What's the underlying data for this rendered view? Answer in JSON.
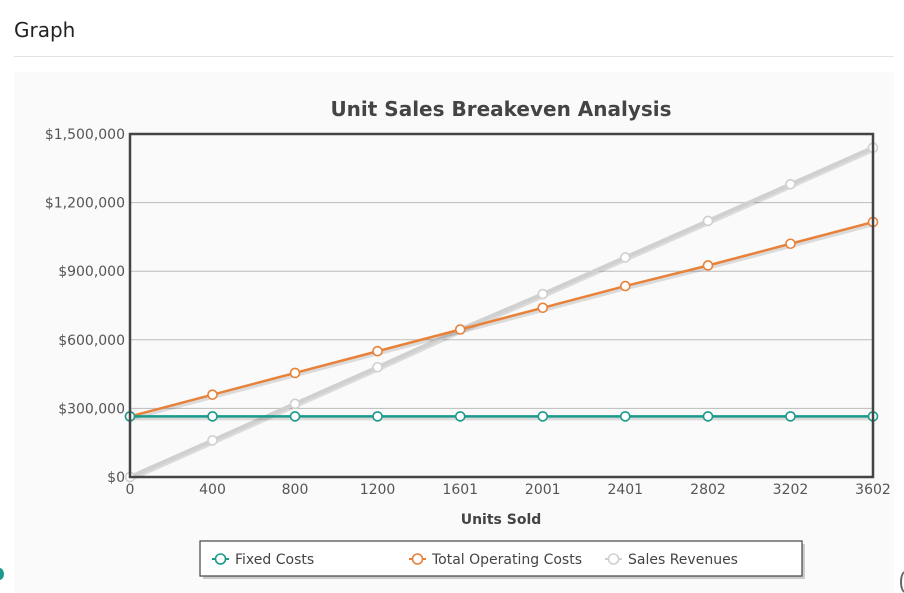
{
  "page": {
    "header": "Graph"
  },
  "colors": {
    "fixed": "#1a9a8a",
    "total": "#e8823a",
    "sales": "#d0d0d0",
    "frame": "#444444",
    "grid": "#bbbbbb"
  },
  "chart_data": {
    "type": "line",
    "title": "Unit Sales Breakeven Analysis",
    "xlabel": "Units Sold",
    "ylabel": "",
    "x": [
      0,
      400,
      800,
      1200,
      1601,
      2001,
      2401,
      2802,
      3202,
      3602
    ],
    "x_tick_labels": [
      "0",
      "400",
      "800",
      "1200",
      "1601",
      "2001",
      "2401",
      "2802",
      "3202",
      "3602"
    ],
    "xlim": [
      0,
      3602
    ],
    "ylim": [
      0,
      1500000
    ],
    "y_ticks": [
      0,
      300000,
      600000,
      900000,
      1200000,
      1500000
    ],
    "y_tick_labels": [
      "$0",
      "$300,000",
      "$600,000",
      "$900,000",
      "$1,200,000",
      "$1,500,000"
    ],
    "grid": true,
    "legend_position": "bottom",
    "series": [
      {
        "name": "Fixed Costs",
        "color": "#1a9a8a",
        "values": [
          265000,
          265000,
          265000,
          265000,
          265000,
          265000,
          265000,
          265000,
          265000,
          265000
        ]
      },
      {
        "name": "Total Operating Costs",
        "color": "#e8823a",
        "values": [
          265000,
          360000,
          455000,
          550000,
          645000,
          740000,
          835000,
          925000,
          1020000,
          1115000
        ]
      },
      {
        "name": "Sales Revenues",
        "color": "#d0d0d0",
        "values": [
          0,
          160000,
          320000,
          480000,
          645000,
          800000,
          960000,
          1120000,
          1280000,
          1440000
        ]
      }
    ]
  }
}
